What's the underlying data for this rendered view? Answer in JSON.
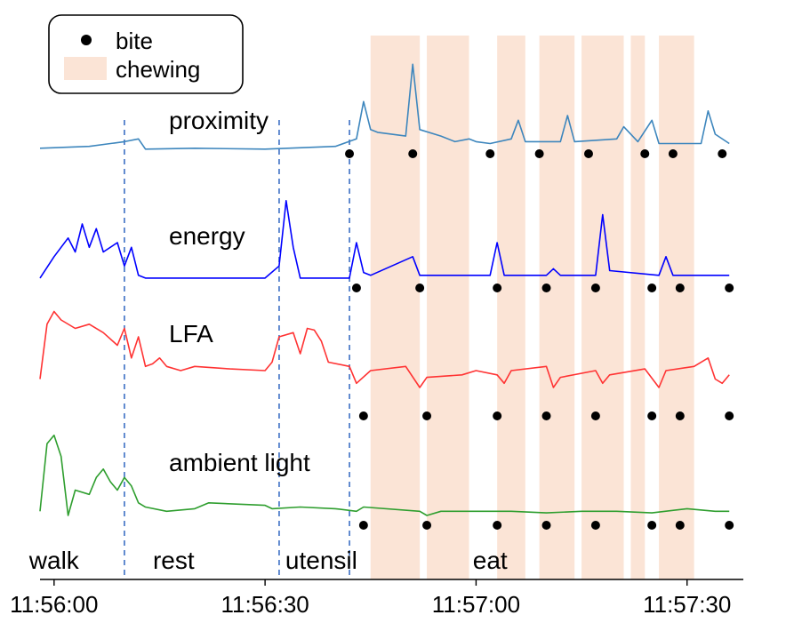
{
  "chart_data": {
    "type": "line",
    "x_unit": "clock time (hh:mm:ss)",
    "xlim": [
      "11:55:58",
      "11:57:38"
    ],
    "x_ticks": [
      "11:56:00",
      "11:56:30",
      "11:57:00",
      "11:57:30"
    ],
    "legend": {
      "placement": "top-left",
      "items": [
        {
          "label": "bite",
          "marker": "dot",
          "color": "#000000"
        },
        {
          "label": "chewing",
          "marker": "band",
          "color": "#fbe4d6"
        }
      ]
    },
    "series": [
      {
        "name": "proximity",
        "color": "#3d86bd",
        "points": [
          [
            "11:55:58",
            0.05
          ],
          [
            "11:56:05",
            0.07
          ],
          [
            "11:56:10",
            0.12
          ],
          [
            "11:56:12",
            0.15
          ],
          [
            "11:56:13",
            0.04
          ],
          [
            "11:56:20",
            0.05
          ],
          [
            "11:56:30",
            0.04
          ],
          [
            "11:56:40",
            0.07
          ],
          [
            "11:56:43",
            0.15
          ],
          [
            "11:56:44",
            0.55
          ],
          [
            "11:56:45",
            0.25
          ],
          [
            "11:56:46",
            0.22
          ],
          [
            "11:56:50",
            0.18
          ],
          [
            "11:56:51",
            0.95
          ],
          [
            "11:56:52",
            0.25
          ],
          [
            "11:56:55",
            0.18
          ],
          [
            "11:56:57",
            0.12
          ],
          [
            "11:56:59",
            0.15
          ],
          [
            "11:57:00",
            0.12
          ],
          [
            "11:57:02",
            0.1
          ],
          [
            "11:57:05",
            0.15
          ],
          [
            "11:57:06",
            0.35
          ],
          [
            "11:57:07",
            0.12
          ],
          [
            "11:57:12",
            0.12
          ],
          [
            "11:57:13",
            0.4
          ],
          [
            "11:57:14",
            0.12
          ],
          [
            "11:57:20",
            0.15
          ],
          [
            "11:57:21",
            0.28
          ],
          [
            "11:57:23",
            0.12
          ],
          [
            "11:57:25",
            0.35
          ],
          [
            "11:57:26",
            0.1
          ],
          [
            "11:57:32",
            0.1
          ],
          [
            "11:57:33",
            0.45
          ],
          [
            "11:57:34",
            0.2
          ],
          [
            "11:57:36",
            0.1
          ]
        ]
      },
      {
        "name": "energy",
        "color": "#0000ff",
        "points": [
          [
            "11:55:58",
            0.02
          ],
          [
            "11:56:00",
            0.25
          ],
          [
            "11:56:02",
            0.45
          ],
          [
            "11:56:03",
            0.3
          ],
          [
            "11:56:04",
            0.6
          ],
          [
            "11:56:05",
            0.35
          ],
          [
            "11:56:06",
            0.55
          ],
          [
            "11:56:07",
            0.3
          ],
          [
            "11:56:09",
            0.4
          ],
          [
            "11:56:10",
            0.15
          ],
          [
            "11:56:11",
            0.35
          ],
          [
            "11:56:12",
            0.05
          ],
          [
            "11:56:13",
            0.02
          ],
          [
            "11:56:30",
            0.02
          ],
          [
            "11:56:32",
            0.15
          ],
          [
            "11:56:33",
            0.85
          ],
          [
            "11:56:34",
            0.35
          ],
          [
            "11:56:35",
            0.02
          ],
          [
            "11:56:42",
            0.02
          ],
          [
            "11:56:43",
            0.4
          ],
          [
            "11:56:44",
            0.08
          ],
          [
            "11:56:45",
            0.05
          ],
          [
            "11:56:51",
            0.25
          ],
          [
            "11:56:52",
            0.05
          ],
          [
            "11:57:02",
            0.05
          ],
          [
            "11:57:03",
            0.4
          ],
          [
            "11:57:04",
            0.05
          ],
          [
            "11:57:10",
            0.05
          ],
          [
            "11:57:11",
            0.12
          ],
          [
            "11:57:12",
            0.05
          ],
          [
            "11:57:17",
            0.05
          ],
          [
            "11:57:18",
            0.7
          ],
          [
            "11:57:19",
            0.1
          ],
          [
            "11:57:26",
            0.05
          ],
          [
            "11:57:27",
            0.25
          ],
          [
            "11:57:28",
            0.05
          ],
          [
            "11:57:36",
            0.05
          ]
        ]
      },
      {
        "name": "LFA",
        "color": "#ff3333",
        "points": [
          [
            "11:55:58",
            0.1
          ],
          [
            "11:55:59",
            0.75
          ],
          [
            "11:56:00",
            0.9
          ],
          [
            "11:56:01",
            0.8
          ],
          [
            "11:56:03",
            0.7
          ],
          [
            "11:56:05",
            0.75
          ],
          [
            "11:56:07",
            0.65
          ],
          [
            "11:56:09",
            0.5
          ],
          [
            "11:56:10",
            0.7
          ],
          [
            "11:56:11",
            0.35
          ],
          [
            "11:56:12",
            0.6
          ],
          [
            "11:56:13",
            0.25
          ],
          [
            "11:56:14",
            0.28
          ],
          [
            "11:56:15",
            0.35
          ],
          [
            "11:56:16",
            0.25
          ],
          [
            "11:56:18",
            0.2
          ],
          [
            "11:56:20",
            0.25
          ],
          [
            "11:56:25",
            0.22
          ],
          [
            "11:56:30",
            0.2
          ],
          [
            "11:56:31",
            0.3
          ],
          [
            "11:56:32",
            0.6
          ],
          [
            "11:56:34",
            0.65
          ],
          [
            "11:56:35",
            0.4
          ],
          [
            "11:56:36",
            0.7
          ],
          [
            "11:56:37",
            0.68
          ],
          [
            "11:56:38",
            0.55
          ],
          [
            "11:56:39",
            0.3
          ],
          [
            "11:56:42",
            0.25
          ],
          [
            "11:56:43",
            0.05
          ],
          [
            "11:56:45",
            0.2
          ],
          [
            "11:56:50",
            0.25
          ],
          [
            "11:56:52",
            0.0
          ],
          [
            "11:56:53",
            0.12
          ],
          [
            "11:56:58",
            0.15
          ],
          [
            "11:57:00",
            0.2
          ],
          [
            "11:57:03",
            0.15
          ],
          [
            "11:57:04",
            0.05
          ],
          [
            "11:57:05",
            0.2
          ],
          [
            "11:57:10",
            0.25
          ],
          [
            "11:57:11",
            0.0
          ],
          [
            "11:57:12",
            0.12
          ],
          [
            "11:57:17",
            0.2
          ],
          [
            "11:57:18",
            0.05
          ],
          [
            "11:57:19",
            0.15
          ],
          [
            "11:57:24",
            0.22
          ],
          [
            "11:57:26",
            0.0
          ],
          [
            "11:57:27",
            0.2
          ],
          [
            "11:57:31",
            0.25
          ],
          [
            "11:57:33",
            0.35
          ],
          [
            "11:57:34",
            0.1
          ],
          [
            "11:57:35",
            0.05
          ],
          [
            "11:57:36",
            0.15
          ]
        ]
      },
      {
        "name": "ambient light",
        "color": "#2e9e2e",
        "points": [
          [
            "11:55:58",
            0.05
          ],
          [
            "11:55:59",
            0.85
          ],
          [
            "11:56:00",
            0.95
          ],
          [
            "11:56:01",
            0.7
          ],
          [
            "11:56:02",
            0.0
          ],
          [
            "11:56:03",
            0.3
          ],
          [
            "11:56:05",
            0.25
          ],
          [
            "11:56:06",
            0.45
          ],
          [
            "11:56:07",
            0.55
          ],
          [
            "11:56:08",
            0.4
          ],
          [
            "11:56:09",
            0.3
          ],
          [
            "11:56:10",
            0.45
          ],
          [
            "11:56:11",
            0.35
          ],
          [
            "11:56:12",
            0.15
          ],
          [
            "11:56:13",
            0.1
          ],
          [
            "11:56:16",
            0.05
          ],
          [
            "11:56:20",
            0.08
          ],
          [
            "11:56:22",
            0.15
          ],
          [
            "11:56:30",
            0.12
          ],
          [
            "11:56:31",
            0.08
          ],
          [
            "11:56:35",
            0.1
          ],
          [
            "11:56:40",
            0.08
          ],
          [
            "11:56:43",
            0.05
          ],
          [
            "11:56:44",
            0.1
          ],
          [
            "11:56:52",
            0.05
          ],
          [
            "11:56:53",
            0.0
          ],
          [
            "11:56:55",
            0.05
          ],
          [
            "11:57:00",
            0.05
          ],
          [
            "11:57:05",
            0.05
          ],
          [
            "11:57:10",
            0.03
          ],
          [
            "11:57:15",
            0.05
          ],
          [
            "11:57:20",
            0.05
          ],
          [
            "11:57:25",
            0.03
          ],
          [
            "11:57:30",
            0.08
          ],
          [
            "11:57:34",
            0.05
          ],
          [
            "11:57:36",
            0.05
          ]
        ]
      }
    ],
    "bites": {
      "proximity": [
        "11:56:42",
        "11:56:51",
        "11:57:02",
        "11:57:09",
        "11:57:16",
        "11:57:24",
        "11:57:28",
        "11:57:35"
      ],
      "energy": [
        "11:56:43",
        "11:56:52",
        "11:57:03",
        "11:57:10",
        "11:57:17",
        "11:57:25",
        "11:57:29",
        "11:57:36"
      ],
      "LFA": [
        "11:56:44",
        "11:56:53",
        "11:57:03",
        "11:57:10",
        "11:57:17",
        "11:57:25",
        "11:57:29",
        "11:57:36"
      ],
      "ambient light": [
        "11:56:44",
        "11:56:53",
        "11:57:03",
        "11:57:10",
        "11:57:17",
        "11:57:25",
        "11:57:29",
        "11:57:36"
      ]
    },
    "chewing_intervals": [
      [
        "11:56:45",
        "11:56:52"
      ],
      [
        "11:56:53",
        "11:56:59"
      ],
      [
        "11:57:03",
        "11:57:07"
      ],
      [
        "11:57:09",
        "11:57:14"
      ],
      [
        "11:57:15",
        "11:57:21"
      ],
      [
        "11:57:22",
        "11:57:24"
      ],
      [
        "11:57:26",
        "11:57:31"
      ]
    ],
    "activity_boundaries": [
      "11:56:10",
      "11:56:32",
      "11:56:42"
    ],
    "phases": [
      {
        "label": "walk",
        "at": "11:56:00"
      },
      {
        "label": "rest",
        "at": "11:56:17"
      },
      {
        "label": "utensil",
        "at": "11:56:38"
      },
      {
        "label": "eat",
        "at": "11:57:02"
      }
    ]
  }
}
